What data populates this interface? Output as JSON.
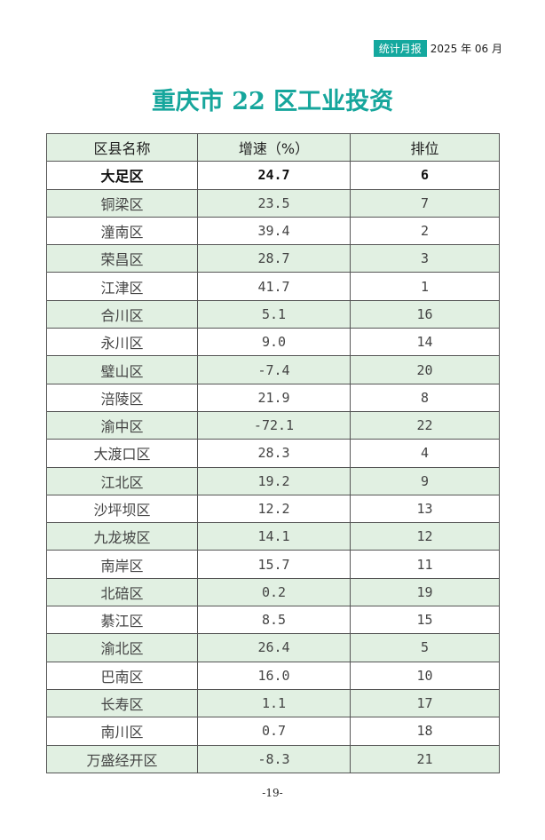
{
  "header": {
    "tag": "统计月报",
    "date": "2025 年 06 月"
  },
  "title": "重庆市 22 区工业投资",
  "table": {
    "columns": [
      "区县名称",
      "增速（%）",
      "排位"
    ],
    "rows": [
      [
        "大足区",
        "24.7",
        "6"
      ],
      [
        "铜梁区",
        "23.5",
        "7"
      ],
      [
        "潼南区",
        "39.4",
        "2"
      ],
      [
        "荣昌区",
        "28.7",
        "3"
      ],
      [
        "江津区",
        "41.7",
        "1"
      ],
      [
        "合川区",
        "5.1",
        "16"
      ],
      [
        "永川区",
        "9.0",
        "14"
      ],
      [
        "璧山区",
        "-7.4",
        "20"
      ],
      [
        "涪陵区",
        "21.9",
        "8"
      ],
      [
        "渝中区",
        "-72.1",
        "22"
      ],
      [
        "大渡口区",
        "28.3",
        "4"
      ],
      [
        "江北区",
        "19.2",
        "9"
      ],
      [
        "沙坪坝区",
        "12.2",
        "13"
      ],
      [
        "九龙坡区",
        "14.1",
        "12"
      ],
      [
        "南岸区",
        "15.7",
        "11"
      ],
      [
        "北碚区",
        "0.2",
        "19"
      ],
      [
        "綦江区",
        "8.5",
        "15"
      ],
      [
        "渝北区",
        "26.4",
        "5"
      ],
      [
        "巴南区",
        "16.0",
        "10"
      ],
      [
        "长寿区",
        "1.1",
        "17"
      ],
      [
        "南川区",
        "0.7",
        "18"
      ],
      [
        "万盛经开区",
        "-8.3",
        "21"
      ]
    ],
    "highlighted_row": "大足区"
  },
  "page_number": "-19-",
  "colors": {
    "accent": "#14a89e",
    "row_fill": "#e1f0e2"
  }
}
